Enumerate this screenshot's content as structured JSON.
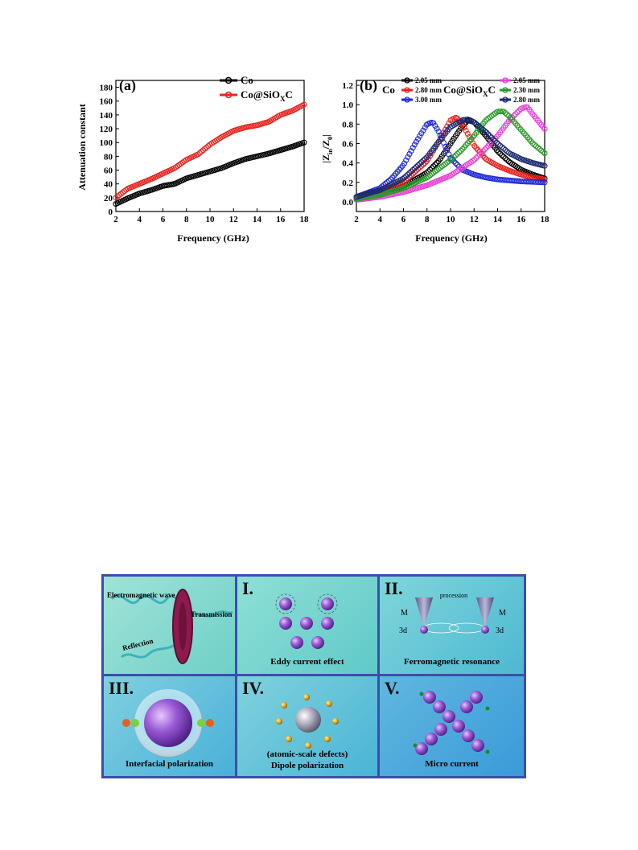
{
  "chart_data": [
    {
      "type": "scatter",
      "panel_label": "(a)",
      "xlabel": "Frequency (GHz)",
      "ylabel": "Attenuation constant",
      "xlim": [
        2,
        18
      ],
      "ylim": [
        0,
        190
      ],
      "xticks": [
        2,
        4,
        6,
        8,
        10,
        12,
        14,
        16,
        18
      ],
      "yticks": [
        0,
        20,
        40,
        60,
        80,
        100,
        120,
        140,
        160,
        180
      ],
      "legend_placement": "top-right",
      "series": [
        {
          "name": "Co",
          "color": "#000000",
          "x": [
            2,
            3,
            4,
            5,
            6,
            7,
            8,
            9,
            10,
            11,
            12,
            13,
            14,
            15,
            16,
            17,
            18
          ],
          "y": [
            11,
            19,
            26,
            31,
            37,
            40,
            48,
            53,
            58,
            63,
            70,
            76,
            80,
            84,
            89,
            94,
            100
          ]
        },
        {
          "name": "Co@SiOXC",
          "color": "#e8231e",
          "x": [
            2,
            3,
            4,
            5,
            6,
            7,
            8,
            9,
            10,
            11,
            12,
            13,
            14,
            15,
            16,
            17,
            18
          ],
          "y": [
            20,
            33,
            40,
            47,
            55,
            63,
            75,
            83,
            97,
            108,
            117,
            122,
            125,
            130,
            140,
            146,
            155
          ]
        }
      ]
    },
    {
      "type": "scatter",
      "panel_label": "(b)",
      "xlabel": "Frequency (GHz)",
      "ylabel": "|Zin/Z0|",
      "xlim": [
        2,
        18
      ],
      "ylim": [
        -0.1,
        1.25
      ],
      "xticks": [
        2,
        4,
        6,
        8,
        10,
        12,
        14,
        16,
        18
      ],
      "yticks": [
        0.0,
        0.2,
        0.4,
        0.6,
        0.8,
        1.0,
        1.2
      ],
      "legend_placement": "top",
      "legend_groups": [
        "Co",
        "Co@SiOXC"
      ],
      "series": [
        {
          "group": "Co",
          "name": "2.05 mm",
          "color": "#000000",
          "x": [
            2,
            4,
            6,
            8,
            9,
            10,
            11,
            11.5,
            12,
            13,
            14,
            15,
            16,
            17,
            18
          ],
          "y": [
            0.03,
            0.08,
            0.16,
            0.3,
            0.42,
            0.6,
            0.78,
            0.84,
            0.82,
            0.68,
            0.52,
            0.41,
            0.33,
            0.28,
            0.24
          ]
        },
        {
          "group": "Co",
          "name": "2.80 mm",
          "color": "#e8231e",
          "x": [
            2,
            4,
            6,
            8,
            9,
            10,
            10.5,
            11,
            12,
            13,
            14,
            15,
            16,
            17,
            18
          ],
          "y": [
            0.04,
            0.1,
            0.2,
            0.42,
            0.62,
            0.84,
            0.87,
            0.8,
            0.58,
            0.44,
            0.37,
            0.32,
            0.28,
            0.25,
            0.23
          ]
        },
        {
          "group": "Co",
          "name": "3.00 mm",
          "color": "#1f2bd8",
          "x": [
            2,
            4,
            5,
            6,
            7,
            8,
            8.5,
            9,
            10,
            11,
            12,
            13,
            14,
            16,
            18
          ],
          "y": [
            0.05,
            0.14,
            0.24,
            0.38,
            0.6,
            0.8,
            0.82,
            0.72,
            0.45,
            0.33,
            0.28,
            0.25,
            0.23,
            0.21,
            0.2
          ]
        },
        {
          "group": "Co@SiOXC",
          "name": "2.05 mm",
          "color": "#e83fd2",
          "x": [
            2,
            4,
            6,
            8,
            10,
            12,
            13,
            14,
            15,
            16,
            16.5,
            17,
            18
          ],
          "y": [
            0.02,
            0.05,
            0.1,
            0.17,
            0.27,
            0.43,
            0.55,
            0.68,
            0.84,
            0.96,
            0.98,
            0.9,
            0.75
          ]
        },
        {
          "group": "Co@SiOXC",
          "name": "2.30 mm",
          "color": "#2a9a2a",
          "x": [
            2,
            4,
            6,
            8,
            10,
            11,
            12,
            13,
            14,
            14.5,
            15,
            16,
            17,
            18
          ],
          "y": [
            0.03,
            0.07,
            0.14,
            0.25,
            0.43,
            0.54,
            0.68,
            0.84,
            0.93,
            0.93,
            0.88,
            0.74,
            0.6,
            0.5
          ]
        },
        {
          "group": "Co@SiOXC",
          "name": "2.80 mm",
          "color": "#1a2a70",
          "x": [
            2,
            4,
            6,
            8,
            9,
            10,
            11,
            11.5,
            12,
            13,
            14,
            15,
            16,
            17,
            18
          ],
          "y": [
            0.05,
            0.12,
            0.24,
            0.46,
            0.62,
            0.77,
            0.84,
            0.85,
            0.82,
            0.72,
            0.6,
            0.5,
            0.44,
            0.4,
            0.37
          ]
        }
      ]
    }
  ],
  "schematic": {
    "border_color": "#3b4fa8",
    "cells": [
      {
        "roman": "",
        "labels": [
          "Electromagnetic wave",
          "Transmission",
          "Reflection"
        ]
      },
      {
        "roman": "I.",
        "caption": "Eddy current effect"
      },
      {
        "roman": "II.",
        "caption": "Ferromagnetic resonance",
        "labels": [
          "procession",
          "M",
          "M",
          "3d",
          "3d"
        ]
      },
      {
        "roman": "III.",
        "caption": "Interfacial polarization"
      },
      {
        "roman": "IV.",
        "caption_lines": [
          "(atomic-scale defects)",
          "Dipole polarization"
        ]
      },
      {
        "roman": "V.",
        "caption": "Micro current"
      }
    ]
  }
}
